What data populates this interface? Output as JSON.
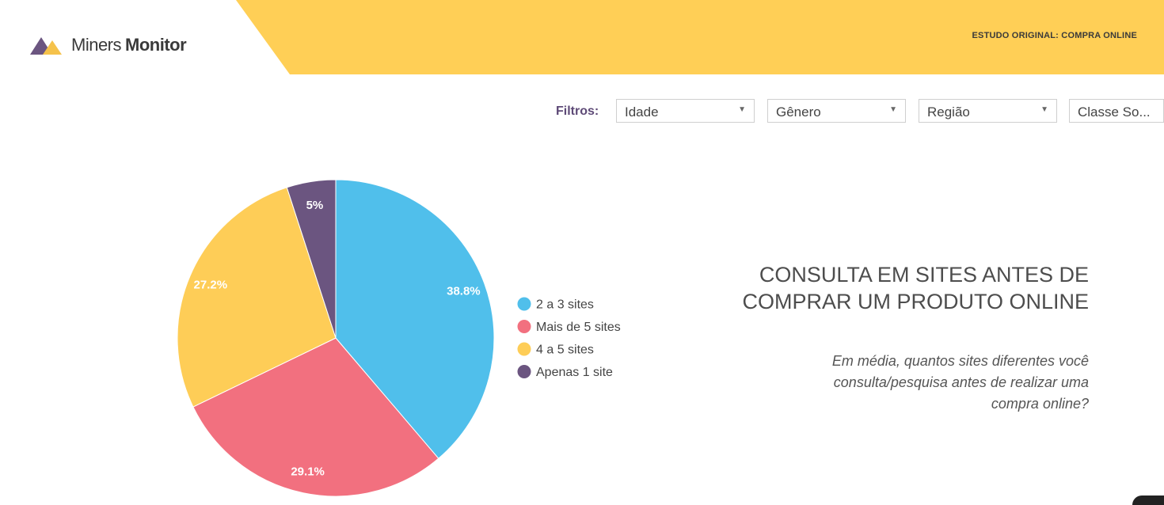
{
  "header": {
    "logo_word1": "Miners",
    "logo_word2": "Monitor",
    "study_label": "ESTUDO ORIGINAL: COMPRA ONLINE",
    "band_color": "#FFCF56",
    "logo_colors": [
      "#6B5580",
      "#F5C24B"
    ]
  },
  "filters": {
    "label": "Filtros:",
    "selects": [
      {
        "value": "Idade"
      },
      {
        "value": "Gênero"
      },
      {
        "value": "Região"
      },
      {
        "value": "Classe So..."
      }
    ]
  },
  "chart_data": {
    "type": "pie",
    "title": "CONSULTA EM SITES ANTES DE COMPRAR UM PRODUTO ONLINE",
    "subtitle": "Em média, quantos sites diferentes você consulta/pesquisa antes de realizar uma compra online?",
    "legend_position": "right",
    "start": "top",
    "direction": "clockwise",
    "slices": [
      {
        "label": "2 a 3 sites",
        "value": 38.8,
        "display": "38.8%",
        "color": "#50BFEB"
      },
      {
        "label": "Mais de 5 sites",
        "value": 29.1,
        "display": "29.1%",
        "color": "#F2707F"
      },
      {
        "label": "4 a 5 sites",
        "value": 27.2,
        "display": "27.2%",
        "color": "#FECD57"
      },
      {
        "label": "Apenas 1 site",
        "value": 5,
        "display": "5%",
        "color": "#6B5580"
      }
    ]
  }
}
